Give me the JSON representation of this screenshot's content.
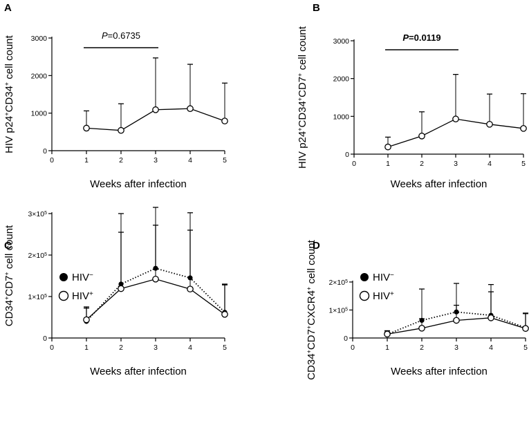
{
  "chart_data": [
    {
      "panel": "A",
      "type": "line",
      "ylabel": "HIV p24+CD34+ cell count",
      "xlabel": "Weeks after infection",
      "xlim": [
        0,
        5
      ],
      "xticks": [
        "0",
        "1",
        "2",
        "3",
        "4",
        "5"
      ],
      "ylim": [
        0,
        3000
      ],
      "yticks": [
        0,
        1000,
        2000,
        3000
      ],
      "ytick_labels": [
        "0",
        "1000",
        "2000",
        "3000"
      ],
      "pvalue": {
        "label_prefix": "P",
        "label_value": "=0.6735",
        "bold": false,
        "from_week": 1,
        "to_week": 3
      },
      "series": [
        {
          "name": "HIV+",
          "marker": "open",
          "line": "solid",
          "x": [
            1,
            2,
            3,
            4,
            5
          ],
          "values": [
            600,
            540,
            1090,
            1120,
            790
          ],
          "error_upper": [
            1060,
            1250,
            2470,
            2300,
            1800
          ]
        }
      ]
    },
    {
      "panel": "B",
      "type": "line",
      "ylabel": "HIV p24+CD34+CD7+ cell count",
      "xlabel": "Weeks after infection",
      "xlim": [
        0,
        5
      ],
      "xticks": [
        "0",
        "1",
        "2",
        "3",
        "4",
        "5"
      ],
      "ylim": [
        0,
        3000
      ],
      "yticks": [
        0,
        1000,
        2000,
        3000
      ],
      "ytick_labels": [
        "0",
        "1000",
        "2000",
        "3000"
      ],
      "pvalue": {
        "label_prefix": "P",
        "label_value": "=0.0119",
        "bold": true,
        "from_week": 1,
        "to_week": 3
      },
      "series": [
        {
          "name": "HIV+",
          "marker": "open",
          "line": "solid",
          "x": [
            1,
            2,
            3,
            4,
            5
          ],
          "values": [
            190,
            480,
            930,
            790,
            680
          ],
          "error_upper": [
            450,
            1120,
            2110,
            1590,
            1600
          ]
        }
      ]
    },
    {
      "panel": "C",
      "type": "line",
      "ylabel": "CD34+CD7+ cell count",
      "xlabel": "Weeks after infection",
      "xlim": [
        0,
        5
      ],
      "xticks": [
        "0",
        "1",
        "2",
        "3",
        "4",
        "5"
      ],
      "ylim": [
        0,
        300000
      ],
      "yticks": [
        0,
        100000,
        200000,
        300000
      ],
      "ytick_labels": [
        "0",
        "1×10",
        "2×10",
        "3×10"
      ],
      "ytick_exp": [
        "",
        "5",
        "5",
        "5"
      ],
      "legend": [
        {
          "label": "HIV",
          "sign": "−",
          "marker": "filled"
        },
        {
          "label": "HIV",
          "sign": "+",
          "marker": "open"
        }
      ],
      "series": [
        {
          "name": "HIV−",
          "marker": "filled",
          "line": "dotted",
          "x": [
            1,
            2,
            3,
            4,
            5
          ],
          "values": [
            40000,
            130000,
            168000,
            145000,
            62000
          ],
          "error_upper": [
            75000,
            255000,
            272000,
            260000,
            128000
          ]
        },
        {
          "name": "HIV+",
          "marker": "open",
          "line": "solid",
          "x": [
            1,
            2,
            3,
            4,
            5
          ],
          "values": [
            44000,
            119000,
            142000,
            118000,
            57000
          ],
          "error_upper": [
            72000,
            300000,
            315000,
            302000,
            130000
          ]
        }
      ]
    },
    {
      "panel": "D",
      "type": "line",
      "ylabel": "CD34+CD7+CXCR4+ cell count",
      "xlabel": "Weeks after infection",
      "xlim": [
        0,
        5
      ],
      "xticks": [
        "0",
        "1",
        "2",
        "3",
        "4",
        "5"
      ],
      "ylim": [
        0,
        200000
      ],
      "yticks": [
        0,
        100000,
        200000
      ],
      "ytick_labels": [
        "0",
        "1×10",
        "2×10"
      ],
      "ytick_exp": [
        "",
        "5",
        "5"
      ],
      "legend": [
        {
          "label": "HIV",
          "sign": "−",
          "marker": "filled"
        },
        {
          "label": "HIV",
          "sign": "+",
          "marker": "open"
        }
      ],
      "series": [
        {
          "name": "HIV−",
          "marker": "filled",
          "line": "dotted",
          "x": [
            1,
            2,
            3,
            4,
            5
          ],
          "values": [
            13000,
            63000,
            93000,
            81000,
            37000
          ],
          "error_upper": [
            26000,
            69000,
            117000,
            165000,
            89000
          ]
        },
        {
          "name": "HIV+",
          "marker": "open",
          "line": "solid",
          "x": [
            1,
            2,
            3,
            4,
            5
          ],
          "values": [
            14000,
            35000,
            63000,
            72000,
            34000
          ],
          "error_upper": [
            22000,
            175000,
            195000,
            191000,
            87000
          ]
        }
      ]
    }
  ]
}
